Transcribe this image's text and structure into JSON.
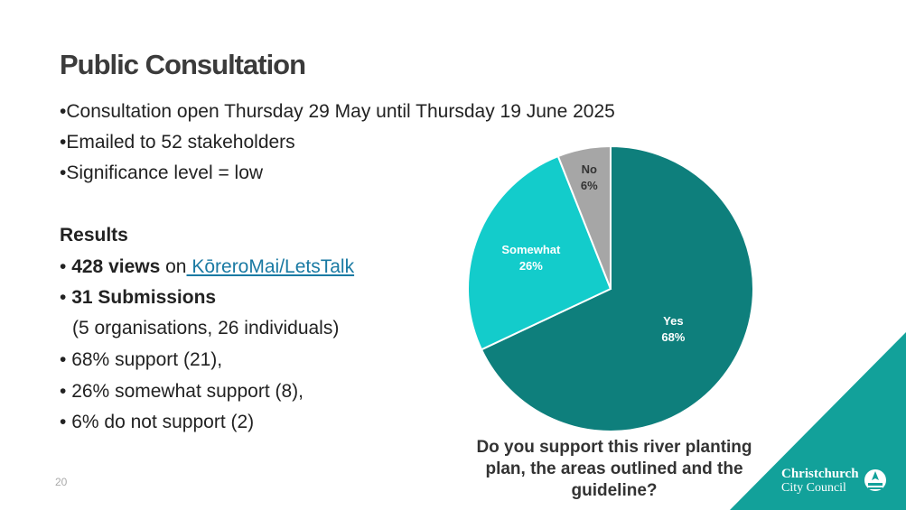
{
  "slide": {
    "title": "Public Consultation",
    "bullets": [
      "•Consultation open Thursday 29 May until Thursday 19 June 2025",
      "•Emailed to 52 stakeholders",
      "•Significance level = low"
    ],
    "results": {
      "heading": "Results",
      "views_bold": "428 views",
      "views_text": " on",
      "views_link": " KōreroMai/LetsTalk",
      "submissions_bold": "31 Submissions",
      "submissions_detail": "(5 organisations, 26 individuals)",
      "support_items": [
        "68% support (21),",
        "26% somewhat support (8),",
        "6% do not support (2)"
      ],
      "bullet_glyph": "•"
    },
    "page_number": "20"
  },
  "chart_data": {
    "type": "pie",
    "title": "Do you support this river planting plan, the areas outlined and the guideline?",
    "slices": [
      {
        "label": "Yes",
        "value": 68,
        "display": "68%",
        "color": "#0e7f7c"
      },
      {
        "label": "Somewhat",
        "value": 26,
        "display": "26%",
        "color": "#13cccb"
      },
      {
        "label": "No",
        "value": 6,
        "display": "6%",
        "color": "#a6a6a6"
      }
    ]
  },
  "logo": {
    "line1": "Christchurch",
    "line2": "City Council",
    "accent_color": "#12a19a"
  }
}
